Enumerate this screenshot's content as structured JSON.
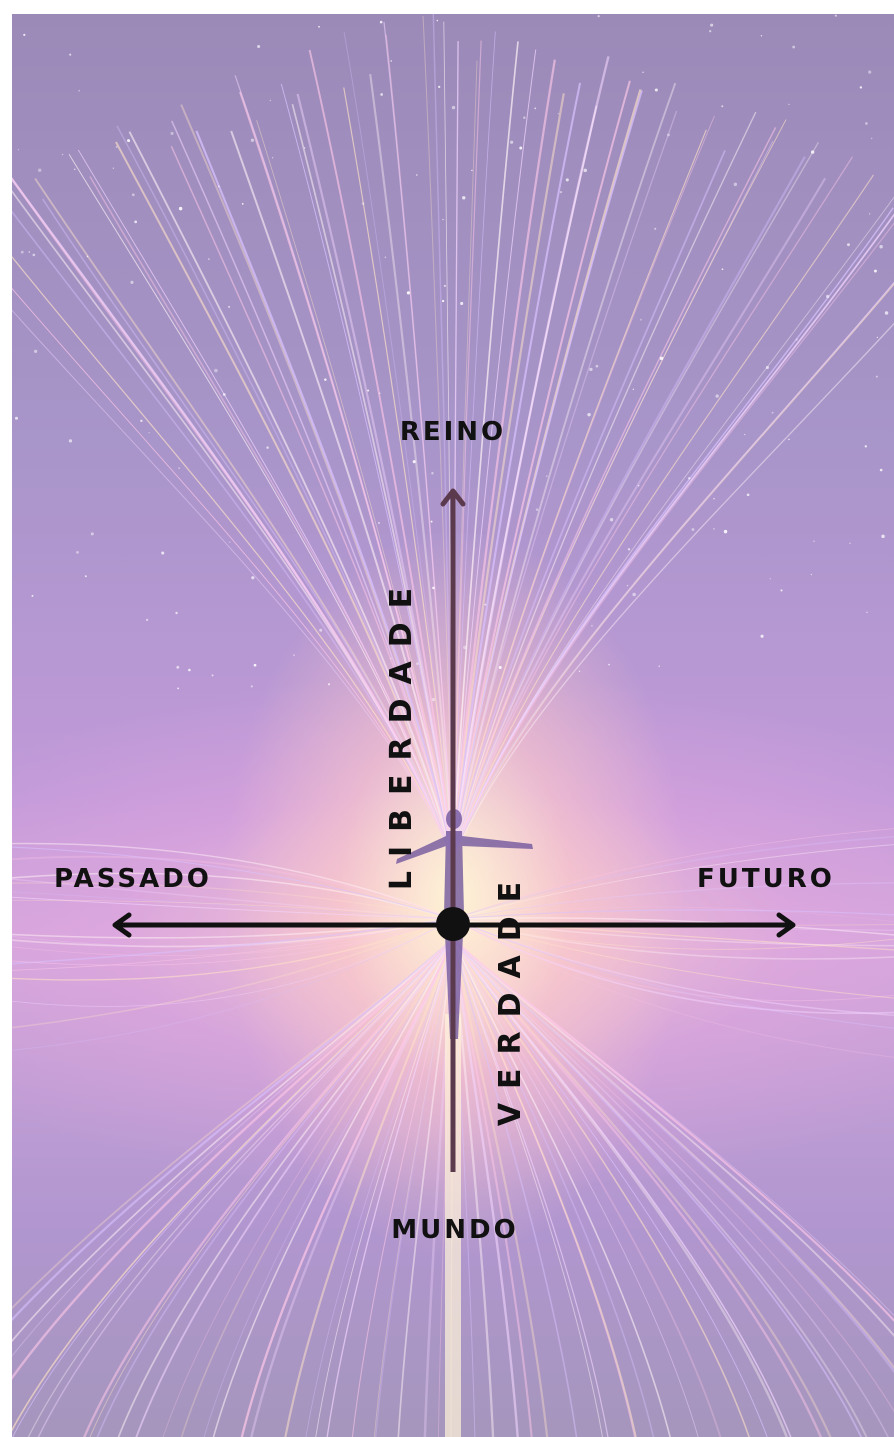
{
  "diagram": {
    "labels": {
      "top": "REINO",
      "bottom": "MUNDO",
      "left": "PASSADO",
      "right": "FUTURO",
      "vertical_upper": "LIBERDADE",
      "vertical_lower": "VERDADE"
    },
    "colors": {
      "vertical_axis": "#5b3a4e",
      "horizontal_axis": "#111111",
      "center_dot": "#111111",
      "text": "#111111",
      "background": "#b39ad0"
    },
    "icons": [
      "arrow-up-icon",
      "arrow-left-icon",
      "arrow-right-icon",
      "center-dot-icon",
      "human-figure-icon"
    ]
  }
}
